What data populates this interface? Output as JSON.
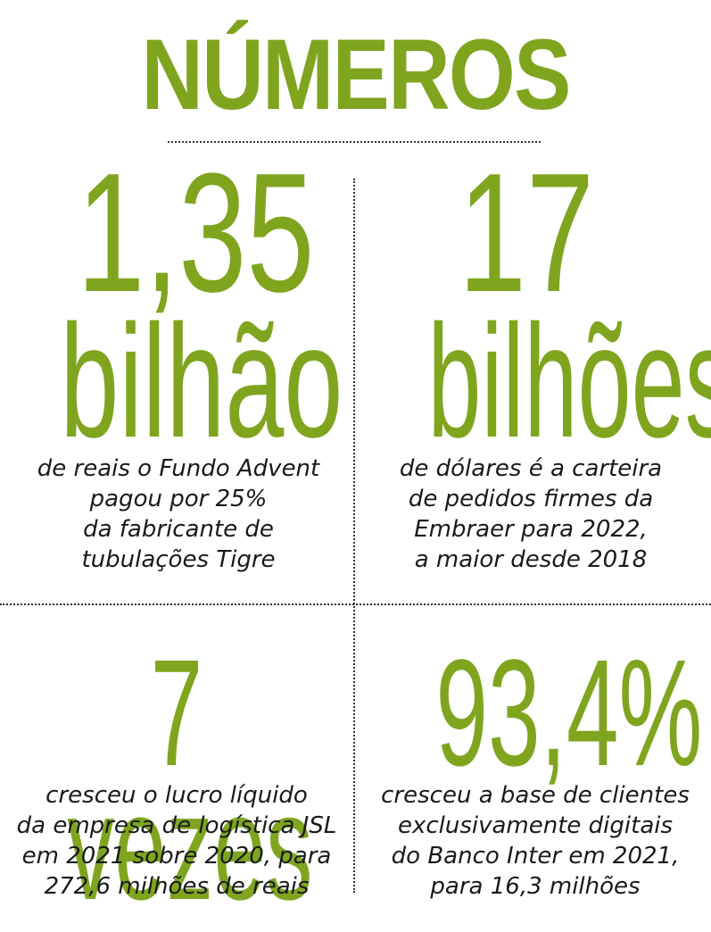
{
  "title": "NÚMEROS",
  "colors": {
    "accent": "#7fa51f",
    "text": "#1a1a1a",
    "rule": "#333333"
  },
  "stats": [
    {
      "value": "1,35",
      "unit": "bilhão",
      "description": [
        "de reais o Fundo Advent",
        "pagou por 25%",
        "da fabricante de",
        "tubulações Tigre"
      ]
    },
    {
      "value": "17",
      "unit": "bilhões",
      "description": [
        "de dólares é a carteira",
        "de pedidos firmes da",
        "Embraer para 2022,",
        "a maior desde 2018"
      ]
    },
    {
      "value": "7 vezes",
      "unit": "",
      "description": [
        "cresceu o lucro líquido",
        "da empresa de logística JSL",
        "em 2021 sobre 2020, para",
        "272,6 milhões de reais"
      ]
    },
    {
      "value": "93,4%",
      "unit": "",
      "description": [
        "cresceu a base de clientes",
        "exclusivamente digitais",
        "do Banco Inter em 2021,",
        "para 16,3 milhões"
      ]
    }
  ]
}
